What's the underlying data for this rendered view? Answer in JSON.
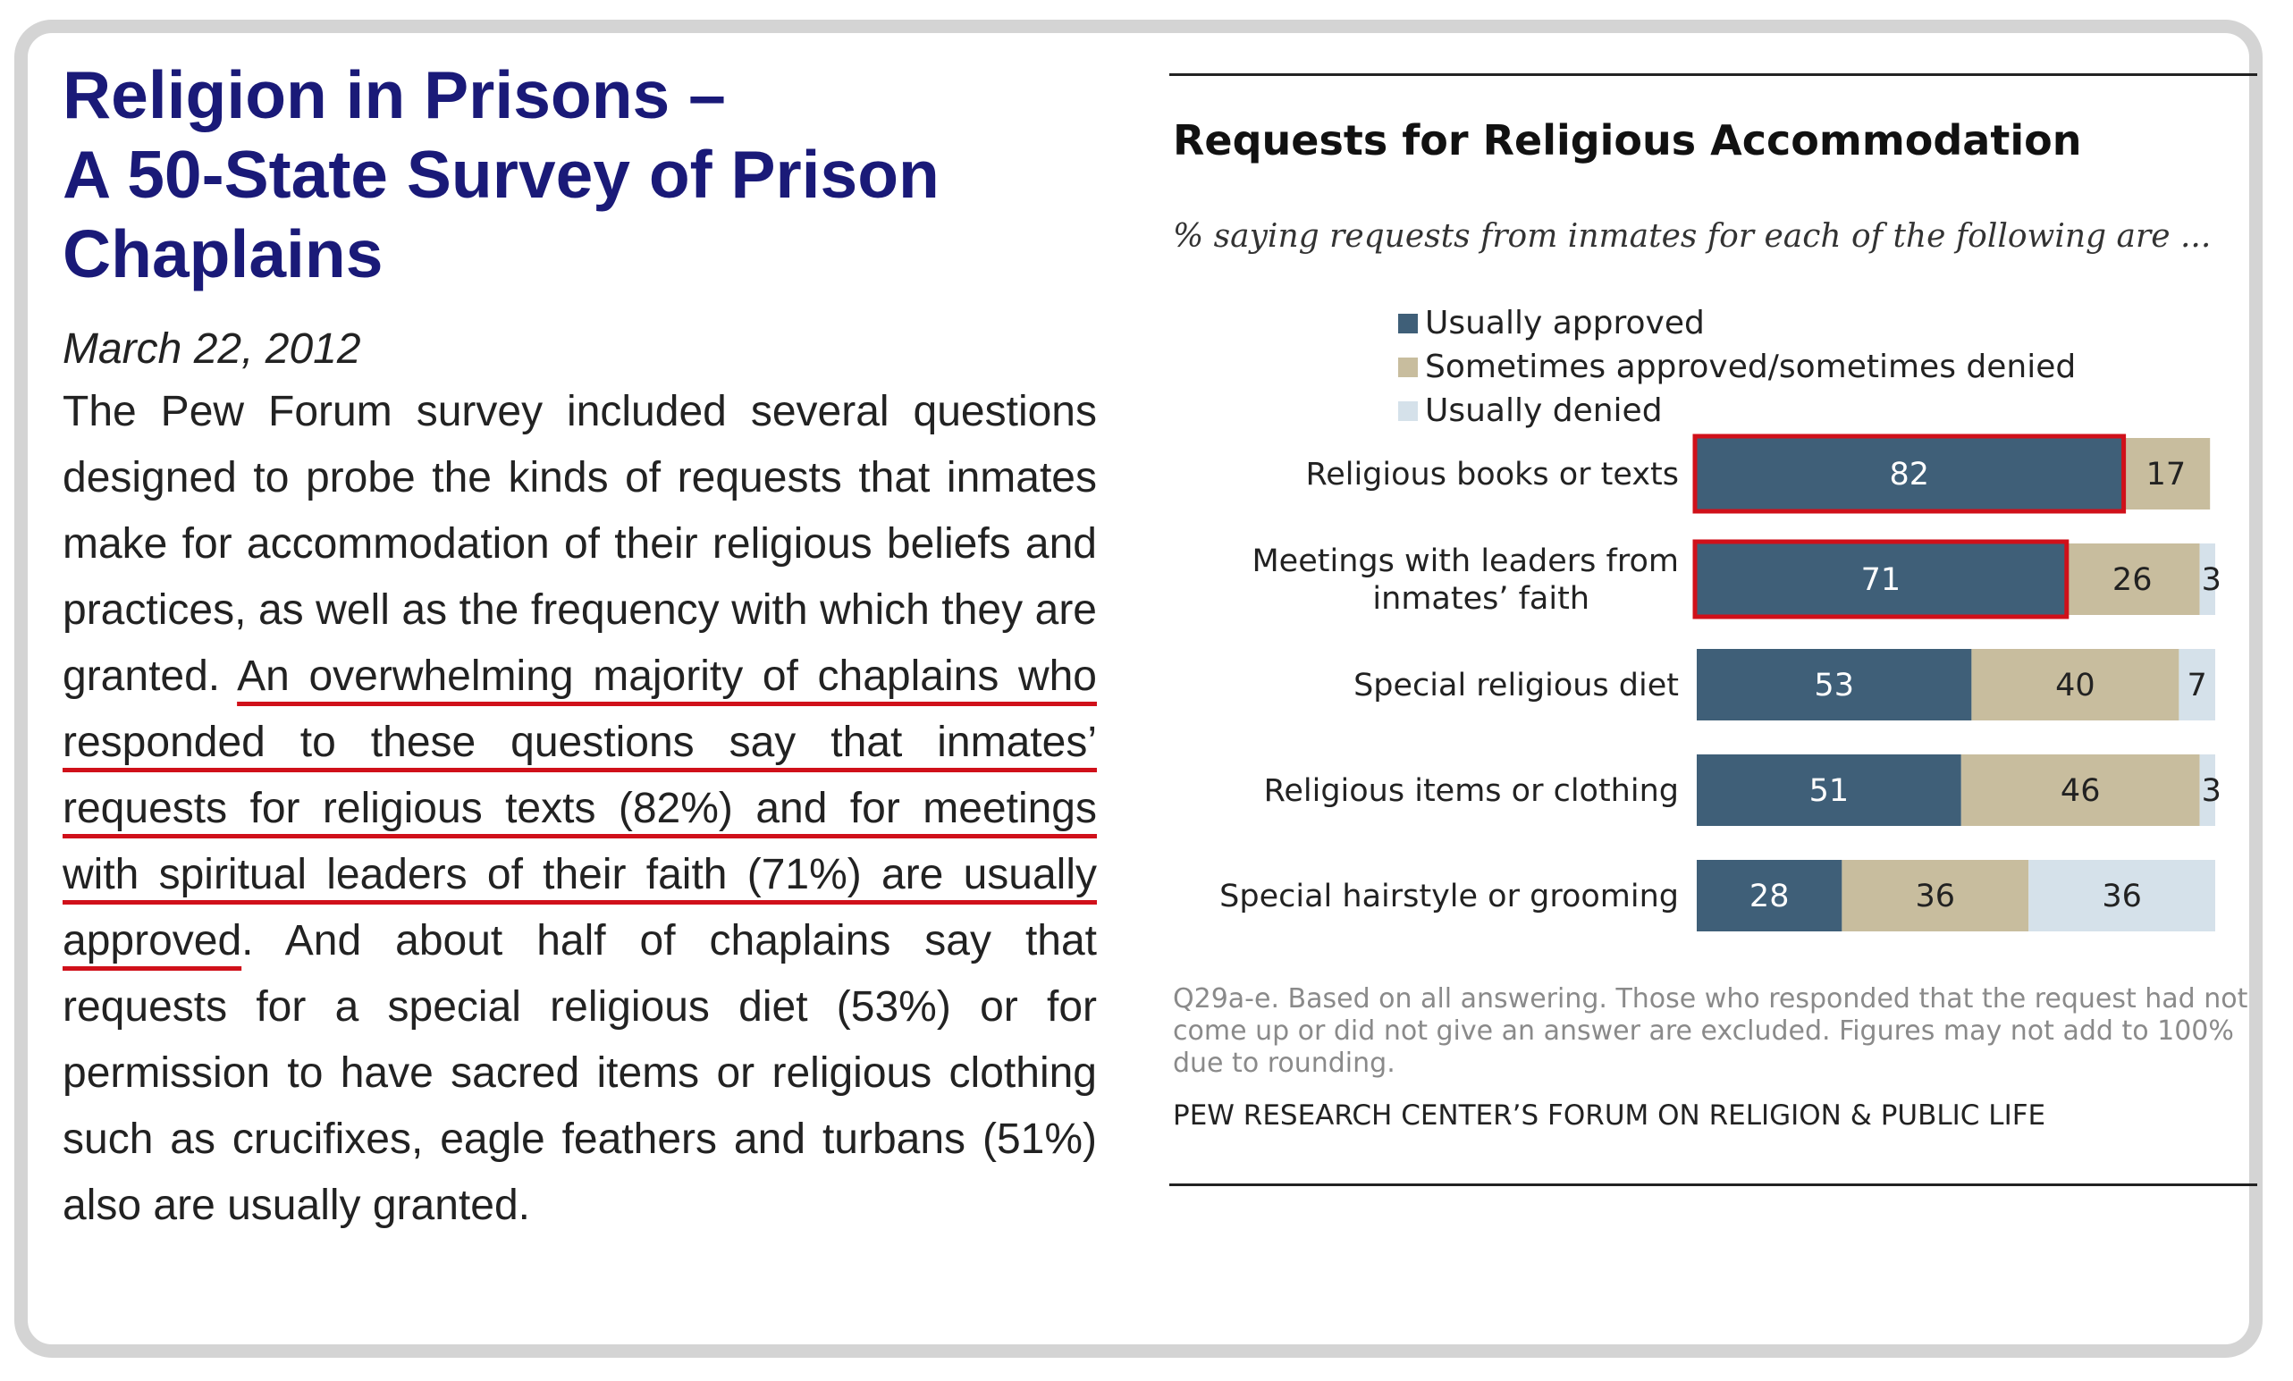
{
  "article": {
    "title_lines": [
      "Religion in Prisons –",
      "A 50-State Survey of Prison",
      "Chaplains"
    ],
    "date": "March 22, 2012",
    "body_before": "The Pew Forum survey included several questions designed to probe the kinds of requests that inmates make for accommodation of their religious beliefs and practices, as well as the frequency with which they are granted. ",
    "body_highlight": "An overwhelming majority of chaplains who responded to these questions say that inmates’ requests for religious texts (82%) and for meetings with spiritual leaders of their faith (71%) are usually approved",
    "body_after": ". And about half of chaplains say that requests for a special religious diet (53%) or for permission to have sacred items or religious clothing such as crucifixes, eagle feathers and turbans (51%) also are usually granted."
  },
  "colors": {
    "title": "#1a1a78",
    "highlight": "#d0101a",
    "approved": "#3f5f78",
    "sometimes": "#c8bd9e",
    "denied": "#d5e1ea"
  },
  "chart_data": {
    "type": "bar",
    "orientation": "horizontal",
    "stacked": true,
    "title": "Requests for Religious Accommodation",
    "subtitle": "% saying requests from inmates for each of the following are ...",
    "categories": [
      [
        "Religious books or texts"
      ],
      [
        "Meetings with leaders from",
        "inmates’ faith"
      ],
      [
        "Special religious diet"
      ],
      [
        "Religious items or clothing"
      ],
      [
        "Special hairstyle or grooming"
      ]
    ],
    "series": [
      {
        "name": "Usually approved",
        "values": [
          82,
          71,
          53,
          51,
          28
        ]
      },
      {
        "name": "Sometimes approved/sometimes denied",
        "values": [
          17,
          26,
          40,
          46,
          36
        ]
      },
      {
        "name": "Usually denied",
        "values": [
          "",
          3,
          7,
          3,
          36
        ]
      }
    ],
    "highlighted_bars": [
      0,
      1
    ],
    "legend_position": "top",
    "xlim": [
      0,
      100
    ],
    "note": "Q29a-e. Based on all answering. Those who responded that the request had not come up or did not give an answer are excluded. Figures may not add to 100% due to rounding.",
    "source": "PEW RESEARCH CENTER’S FORUM ON RELIGION & PUBLIC LIFE"
  }
}
